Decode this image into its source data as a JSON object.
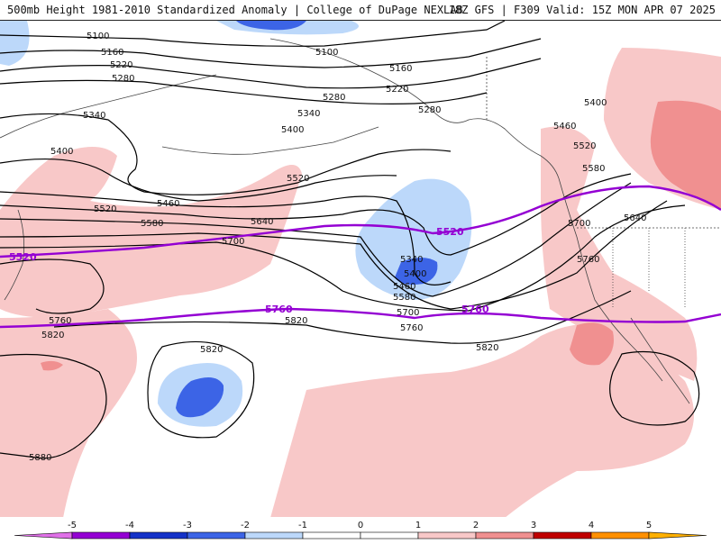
{
  "header": {
    "title": "500mb Height 1981-2010 Standardized Anomaly | College of DuPage NEXLAB",
    "run_info": "18Z GFS | F309 Valid: 15Z MON APR 07 2025"
  },
  "colors": {
    "anom_m5": "#e070e8",
    "anom_m4": "#9400d3",
    "anom_m3": "#1432c8",
    "anom_m2": "#3c64e6",
    "anom_m1": "#bcd8fa",
    "anom_p1": "#f8c8c8",
    "anom_p2": "#f09090",
    "anom_p3": "#e05050",
    "anom_p4": "#c00000",
    "anom_p5": "#ff9000",
    "contour": "#000000",
    "highlight_contour": "#9400d3",
    "coastline": "#444444"
  },
  "legend": {
    "ticks": [
      "-5",
      "-4",
      "-3",
      "-2",
      "-1",
      "0",
      "1",
      "2",
      "3",
      "4",
      "5"
    ],
    "bins": [
      {
        "from": -5,
        "to": -4,
        "color": "#9400d3"
      },
      {
        "from": -4,
        "to": -3,
        "color": "#1432c8"
      },
      {
        "from": -3,
        "to": -2,
        "color": "#3c64e6"
      },
      {
        "from": -2,
        "to": -1,
        "color": "#bcd8fa"
      },
      {
        "from": -1,
        "to": 0,
        "color": "#ffffff"
      },
      {
        "from": 0,
        "to": 1,
        "color": "#ffffff"
      },
      {
        "from": 1,
        "to": 2,
        "color": "#f8c8c8"
      },
      {
        "from": 2,
        "to": 3,
        "color": "#f09090"
      },
      {
        "from": 3,
        "to": 4,
        "color": "#c00000"
      },
      {
        "from": 4,
        "to": 5,
        "color": "#ff9000"
      }
    ],
    "left_arrow_color": "#e070e8",
    "right_arrow_color": "#ffb000"
  },
  "contour_labels": [
    "5100",
    "5160",
    "5220",
    "5280",
    "5340",
    "5400",
    "5460",
    "5520",
    "5580",
    "5640",
    "5700",
    "5760",
    "5820",
    "5880"
  ],
  "highlighted_contour_labels": [
    "5520",
    "5760"
  ]
}
